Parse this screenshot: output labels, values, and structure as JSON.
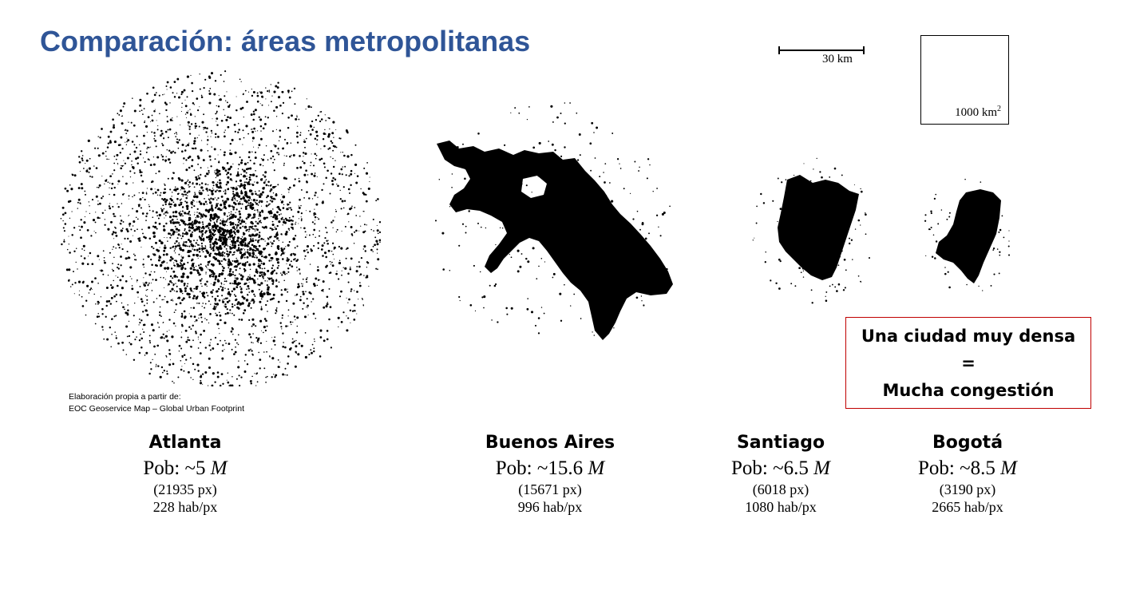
{
  "title": "Comparación: áreas metropolitanas",
  "source_note": {
    "line1": "Elaboración propia a partir de:",
    "line2": "EOC Geoservice Map – Global Urban Footprint"
  },
  "scale_bar": {
    "label": "30 km"
  },
  "area_reference": {
    "label": "1000 km",
    "exponent": "2"
  },
  "callout": {
    "line1": "Una ciudad muy densa",
    "line2": "=",
    "line3": "Mucha congestión",
    "border_color": "#c00000"
  },
  "cities": [
    {
      "name": "Atlanta",
      "pop_prefix": "Pob: ~5 ",
      "pop_unit": "M",
      "pixels": "(21935 px)",
      "density": "228 hab/px",
      "footprint": "dispersed"
    },
    {
      "name": "Buenos Aires",
      "pop_prefix": "Pob: ~15.6 ",
      "pop_unit": "M",
      "pixels": "(15671 px)",
      "density": "996 hab/px",
      "footprint": "compact"
    },
    {
      "name": "Santiago",
      "pop_prefix": "Pob: ~6.5 ",
      "pop_unit": "M",
      "pixels": "(6018 px)",
      "density": "1080 hab/px",
      "footprint": "compact"
    },
    {
      "name": "Bogotá",
      "pop_prefix": "Pob: ~8.5 ",
      "pop_unit": "M",
      "pixels": "(3190 px)",
      "density": "2665 hab/px",
      "footprint": "compact"
    }
  ],
  "colors": {
    "title": "#2f5597",
    "map_ink": "#000000"
  }
}
